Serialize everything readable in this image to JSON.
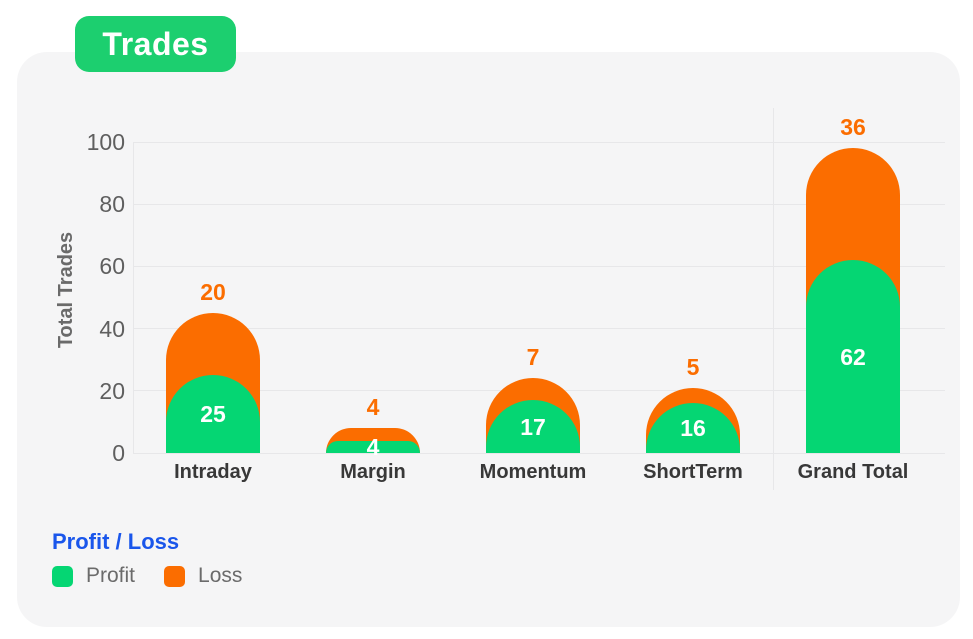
{
  "page": {
    "title_badge": "Trades"
  },
  "colors": {
    "badge_green": "#1ccf6f",
    "profit_green": "#05d673",
    "loss_orange": "#fb6d00",
    "legend_title_blue": "#1a56eb",
    "card_bg": "#f5f5f6",
    "grid": "#e7e7e9",
    "axis_text": "#5f5f5f",
    "category_text": "#383838",
    "legend_text": "#6b6b6b"
  },
  "chart_data": {
    "type": "bar",
    "stacked": true,
    "title": "Trades",
    "ylabel": "Total Trades",
    "xlabel": "",
    "categories": [
      "Intraday",
      "Margin",
      "Momentum",
      "ShortTerm",
      "Grand Total"
    ],
    "series": [
      {
        "name": "Profit",
        "color": "#05d673",
        "values": [
          25,
          4,
          17,
          16,
          62
        ]
      },
      {
        "name": "Loss",
        "color": "#fb6d00",
        "values": [
          20,
          4,
          7,
          5,
          36
        ]
      }
    ],
    "totals": [
      45,
      8,
      24,
      21,
      98
    ],
    "yticks": [
      0,
      20,
      40,
      60,
      80,
      100
    ],
    "ylim": [
      0,
      100
    ],
    "grid": true,
    "grand_total_separator": true,
    "value_label_style": {
      "profit": "white inside bar",
      "loss": "orange above bar"
    },
    "legend_title": "Profit / Loss",
    "legend": [
      {
        "label": "Profit",
        "color": "#05d673"
      },
      {
        "label": "Loss",
        "color": "#fb6d00"
      }
    ],
    "legend_position": "bottom-left"
  }
}
